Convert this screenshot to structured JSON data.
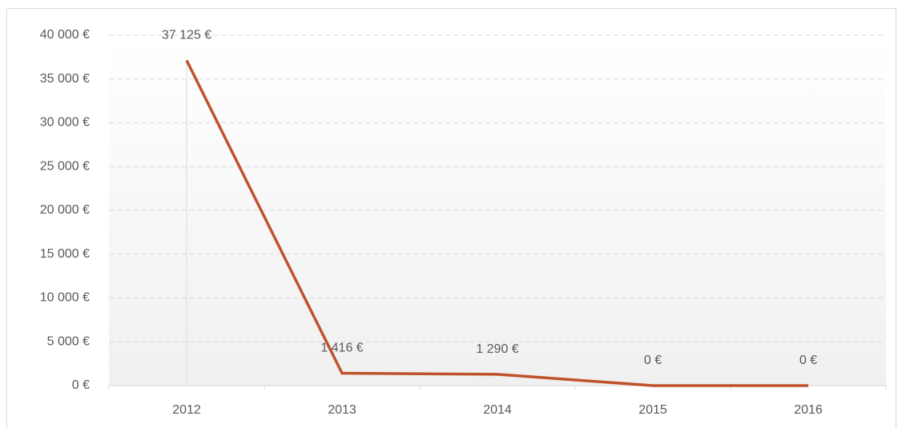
{
  "chart_data": {
    "type": "line",
    "categories": [
      "2012",
      "2013",
      "2014",
      "2015",
      "2016"
    ],
    "values": [
      37125,
      1416,
      1290,
      0,
      0
    ],
    "value_labels": [
      "37 125 €",
      "1 416 €",
      "1 290 €",
      "0 €",
      "0 €"
    ],
    "color": "#c0522b",
    "ylim": [
      0,
      40000
    ],
    "yticks": [
      {
        "value": 0,
        "label": "0 €"
      },
      {
        "value": 5000,
        "label": "5 000 €"
      },
      {
        "value": 10000,
        "label": "10 000 €"
      },
      {
        "value": 15000,
        "label": "15 000 €"
      },
      {
        "value": 20000,
        "label": "20 000 €"
      },
      {
        "value": 25000,
        "label": "25 000 €"
      },
      {
        "value": 30000,
        "label": "30 000 €"
      },
      {
        "value": 35000,
        "label": "35 000 €"
      },
      {
        "value": 40000,
        "label": "40 000 €"
      }
    ],
    "grid": true
  }
}
